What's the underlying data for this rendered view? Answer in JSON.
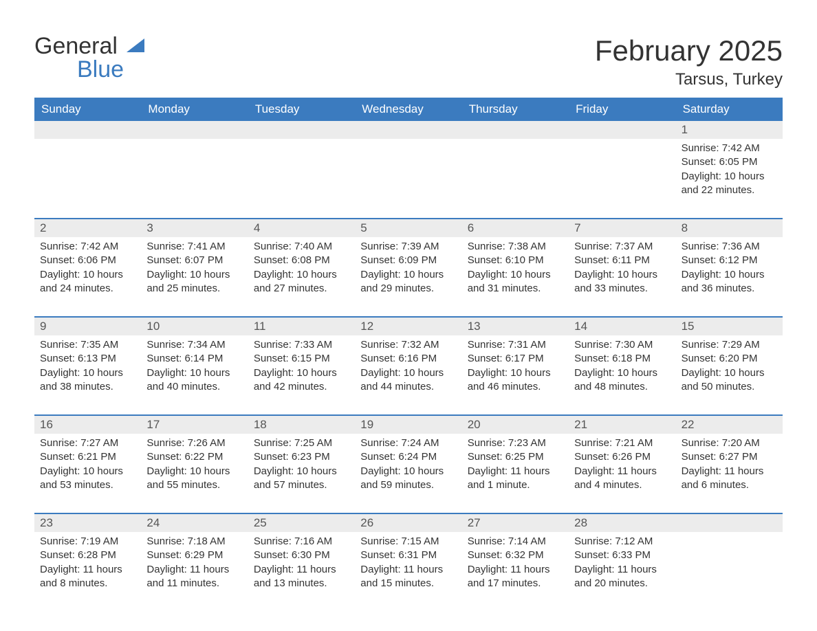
{
  "logo": {
    "text1": "General",
    "text2": "Blue",
    "sail_color": "#3b7bbf"
  },
  "header": {
    "month_title": "February 2025",
    "location": "Tarsus, Turkey"
  },
  "colors": {
    "header_bg": "#3b7bbf",
    "header_text": "#ffffff",
    "daynum_bg": "#ececec",
    "border": "#3b7bbf",
    "body_text": "#333333"
  },
  "weekdays": [
    "Sunday",
    "Monday",
    "Tuesday",
    "Wednesday",
    "Thursday",
    "Friday",
    "Saturday"
  ],
  "weeks": [
    [
      {
        "empty": true
      },
      {
        "empty": true
      },
      {
        "empty": true
      },
      {
        "empty": true
      },
      {
        "empty": true
      },
      {
        "empty": true
      },
      {
        "day": "1",
        "sunrise": "Sunrise: 7:42 AM",
        "sunset": "Sunset: 6:05 PM",
        "daylight": "Daylight: 10 hours and 22 minutes."
      }
    ],
    [
      {
        "day": "2",
        "sunrise": "Sunrise: 7:42 AM",
        "sunset": "Sunset: 6:06 PM",
        "daylight": "Daylight: 10 hours and 24 minutes."
      },
      {
        "day": "3",
        "sunrise": "Sunrise: 7:41 AM",
        "sunset": "Sunset: 6:07 PM",
        "daylight": "Daylight: 10 hours and 25 minutes."
      },
      {
        "day": "4",
        "sunrise": "Sunrise: 7:40 AM",
        "sunset": "Sunset: 6:08 PM",
        "daylight": "Daylight: 10 hours and 27 minutes."
      },
      {
        "day": "5",
        "sunrise": "Sunrise: 7:39 AM",
        "sunset": "Sunset: 6:09 PM",
        "daylight": "Daylight: 10 hours and 29 minutes."
      },
      {
        "day": "6",
        "sunrise": "Sunrise: 7:38 AM",
        "sunset": "Sunset: 6:10 PM",
        "daylight": "Daylight: 10 hours and 31 minutes."
      },
      {
        "day": "7",
        "sunrise": "Sunrise: 7:37 AM",
        "sunset": "Sunset: 6:11 PM",
        "daylight": "Daylight: 10 hours and 33 minutes."
      },
      {
        "day": "8",
        "sunrise": "Sunrise: 7:36 AM",
        "sunset": "Sunset: 6:12 PM",
        "daylight": "Daylight: 10 hours and 36 minutes."
      }
    ],
    [
      {
        "day": "9",
        "sunrise": "Sunrise: 7:35 AM",
        "sunset": "Sunset: 6:13 PM",
        "daylight": "Daylight: 10 hours and 38 minutes."
      },
      {
        "day": "10",
        "sunrise": "Sunrise: 7:34 AM",
        "sunset": "Sunset: 6:14 PM",
        "daylight": "Daylight: 10 hours and 40 minutes."
      },
      {
        "day": "11",
        "sunrise": "Sunrise: 7:33 AM",
        "sunset": "Sunset: 6:15 PM",
        "daylight": "Daylight: 10 hours and 42 minutes."
      },
      {
        "day": "12",
        "sunrise": "Sunrise: 7:32 AM",
        "sunset": "Sunset: 6:16 PM",
        "daylight": "Daylight: 10 hours and 44 minutes."
      },
      {
        "day": "13",
        "sunrise": "Sunrise: 7:31 AM",
        "sunset": "Sunset: 6:17 PM",
        "daylight": "Daylight: 10 hours and 46 minutes."
      },
      {
        "day": "14",
        "sunrise": "Sunrise: 7:30 AM",
        "sunset": "Sunset: 6:18 PM",
        "daylight": "Daylight: 10 hours and 48 minutes."
      },
      {
        "day": "15",
        "sunrise": "Sunrise: 7:29 AM",
        "sunset": "Sunset: 6:20 PM",
        "daylight": "Daylight: 10 hours and 50 minutes."
      }
    ],
    [
      {
        "day": "16",
        "sunrise": "Sunrise: 7:27 AM",
        "sunset": "Sunset: 6:21 PM",
        "daylight": "Daylight: 10 hours and 53 minutes."
      },
      {
        "day": "17",
        "sunrise": "Sunrise: 7:26 AM",
        "sunset": "Sunset: 6:22 PM",
        "daylight": "Daylight: 10 hours and 55 minutes."
      },
      {
        "day": "18",
        "sunrise": "Sunrise: 7:25 AM",
        "sunset": "Sunset: 6:23 PM",
        "daylight": "Daylight: 10 hours and 57 minutes."
      },
      {
        "day": "19",
        "sunrise": "Sunrise: 7:24 AM",
        "sunset": "Sunset: 6:24 PM",
        "daylight": "Daylight: 10 hours and 59 minutes."
      },
      {
        "day": "20",
        "sunrise": "Sunrise: 7:23 AM",
        "sunset": "Sunset: 6:25 PM",
        "daylight": "Daylight: 11 hours and 1 minute."
      },
      {
        "day": "21",
        "sunrise": "Sunrise: 7:21 AM",
        "sunset": "Sunset: 6:26 PM",
        "daylight": "Daylight: 11 hours and 4 minutes."
      },
      {
        "day": "22",
        "sunrise": "Sunrise: 7:20 AM",
        "sunset": "Sunset: 6:27 PM",
        "daylight": "Daylight: 11 hours and 6 minutes."
      }
    ],
    [
      {
        "day": "23",
        "sunrise": "Sunrise: 7:19 AM",
        "sunset": "Sunset: 6:28 PM",
        "daylight": "Daylight: 11 hours and 8 minutes."
      },
      {
        "day": "24",
        "sunrise": "Sunrise: 7:18 AM",
        "sunset": "Sunset: 6:29 PM",
        "daylight": "Daylight: 11 hours and 11 minutes."
      },
      {
        "day": "25",
        "sunrise": "Sunrise: 7:16 AM",
        "sunset": "Sunset: 6:30 PM",
        "daylight": "Daylight: 11 hours and 13 minutes."
      },
      {
        "day": "26",
        "sunrise": "Sunrise: 7:15 AM",
        "sunset": "Sunset: 6:31 PM",
        "daylight": "Daylight: 11 hours and 15 minutes."
      },
      {
        "day": "27",
        "sunrise": "Sunrise: 7:14 AM",
        "sunset": "Sunset: 6:32 PM",
        "daylight": "Daylight: 11 hours and 17 minutes."
      },
      {
        "day": "28",
        "sunrise": "Sunrise: 7:12 AM",
        "sunset": "Sunset: 6:33 PM",
        "daylight": "Daylight: 11 hours and 20 minutes."
      },
      {
        "empty": true
      }
    ]
  ]
}
